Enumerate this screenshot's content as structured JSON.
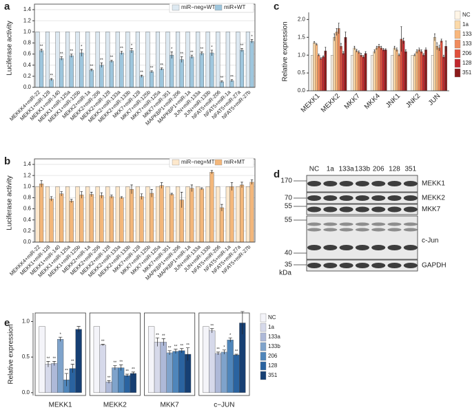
{
  "chart_data": [
    {
      "type": "bar",
      "label": "a",
      "y_label": "Luciferase activity",
      "categories": [
        "MEKKK4+miR-22",
        "MEKK1+miR-128",
        "MEKK1+miR-140",
        "MEKK1+miR-125a",
        "MEKK1+miR-125b",
        "MEKK2+miR-1a",
        "MEKK2+miR-206",
        "MEKK2+miR-128",
        "MEKK2+miR-133a",
        "MEKK2+miR-133b",
        "MKK7+miR-128",
        "MKK7+miR-125b",
        "MKK7+miR-125a",
        "MKK7+miR-351",
        "MAPKBP1+miR-206",
        "MAPKBP1+miR-1a",
        "JUN+miR-133a",
        "JUN+miR-133b",
        "NFAT5+miR-206",
        "NFAT5+miR-1a",
        "NFAT5+miR-27a",
        "NFAT5+miR-27b"
      ],
      "series": [
        {
          "name": "miR−neg+WT",
          "color": "#dde9f2",
          "values": [
            1,
            1,
            1,
            1,
            1,
            1,
            1,
            1,
            1,
            1,
            1,
            1,
            1,
            1,
            1,
            1,
            1,
            1,
            1,
            1,
            1,
            1
          ]
        },
        {
          "name": "miR+WT",
          "color": "#9ec6dd",
          "values": [
            0.66,
            0.14,
            0.52,
            0.57,
            0.62,
            0.31,
            0.4,
            0.47,
            0.62,
            0.66,
            0.2,
            0.28,
            0.33,
            0.58,
            0.5,
            0.55,
            0.61,
            0.62,
            0.1,
            0.12,
            0.67,
            0.83
          ],
          "errors": [
            0.03,
            0.02,
            0.03,
            0.03,
            0.06,
            0.02,
            0.04,
            0.02,
            0.03,
            0.04,
            0.02,
            0.02,
            0.02,
            0.06,
            0.05,
            0.03,
            0.03,
            0.05,
            0.02,
            0.02,
            0.03,
            0.03
          ]
        }
      ],
      "annotations": [
        "**",
        "**",
        "**",
        "**",
        "*",
        "**",
        "**",
        "**",
        "**",
        "*",
        "**",
        "**",
        "**",
        "*",
        "**",
        "**",
        "**",
        "*",
        "**",
        "**",
        "**",
        "*"
      ],
      "ylim": [
        0,
        1.45
      ],
      "yticks": [
        {
          "value": 0,
          "label": "0.0"
        },
        0.2,
        0.4,
        0.6,
        0.8,
        {
          "value": 1,
          "label": "1.0"
        },
        1.2,
        1.4
      ],
      "grid": true,
      "legend": "upper right"
    },
    {
      "type": "bar",
      "label": "b",
      "y_label": "Luciferase activity",
      "categories": [
        "MEKKK4+miR-22",
        "MEKK1+miR-128",
        "MEKK1+miR-140",
        "MEKK1+miR-125a",
        "MEKK1+miR-125b",
        "MEKK2+miR-1a",
        "MEKK2+miR-206",
        "MEKK2+miR-128",
        "MEKK2+miR-133a",
        "MEKK2+miR-133b",
        "MKK7+miR-128",
        "MKK7+miR-125b",
        "MKK7+miR-125a",
        "MKK7+miR-351",
        "MAPKBP1+miR-206",
        "MAPKBP1+miR-1a",
        "JUN+miR-133a",
        "JUN+miR-133b",
        "NFAT5+miR-206",
        "NFAT5+miR-1a",
        "NFAT5+miR-27a",
        "NFAT5+miR-27b"
      ],
      "series": [
        {
          "name": "miR−neg+MT",
          "color": "#fde8cc",
          "values": [
            1,
            1,
            1,
            1,
            1,
            1,
            1,
            1,
            1,
            1,
            1,
            1,
            1,
            1,
            1,
            1,
            1,
            1,
            1,
            1,
            1,
            1
          ]
        },
        {
          "name": "miR+MT",
          "color": "#f3b77b",
          "values": [
            1.05,
            0.78,
            0.87,
            0.74,
            0.85,
            0.86,
            0.84,
            0.82,
            0.8,
            0.95,
            0.82,
            0.88,
            1.02,
            0.86,
            0.76,
            0.97,
            0.96,
            1.26,
            0.62,
            1.0,
            1.03,
            1.08
          ],
          "errors": [
            0.06,
            0.04,
            0.04,
            0.03,
            0.06,
            0.04,
            0.05,
            0.03,
            0.02,
            0.08,
            0.05,
            0.07,
            0.05,
            0.02,
            0.14,
            0.06,
            0.02,
            0.03,
            0.06,
            0.07,
            0.05,
            0.04
          ]
        }
      ],
      "ylim": [
        0,
        1.45
      ],
      "yticks": [
        {
          "value": 0,
          "label": "0.0"
        },
        0.2,
        0.4,
        0.6,
        0.8,
        {
          "value": 1,
          "label": "1.0"
        },
        1.2,
        1.4
      ],
      "grid": true,
      "legend": "upper right"
    },
    {
      "type": "bar",
      "label": "c",
      "y_label": "Relative expression",
      "categories": [
        "MEKK1",
        "MEKK2",
        "MKK7",
        "MKK4",
        "JNK1",
        "JNK2",
        "JUN"
      ],
      "series": [
        {
          "name": "NC",
          "color": "#fff5e6",
          "values": [
            1,
            1,
            1,
            1,
            1,
            1,
            1
          ]
        },
        {
          "name": "1a",
          "color": "#fcd9a8",
          "values": [
            1.35,
            1.5,
            1.2,
            1.1,
            1.2,
            1.0,
            1.5
          ],
          "errors": [
            0.03,
            0.1,
            0.05,
            0.05,
            0.05,
            0.03,
            0.1
          ]
        },
        {
          "name": "133a",
          "color": "#f9b77b",
          "values": [
            1.3,
            1.65,
            1.12,
            1.2,
            1.15,
            1.1,
            1.25
          ],
          "errors": [
            0.03,
            0.1,
            0.04,
            0.05,
            0.05,
            0.05,
            0.1
          ]
        },
        {
          "name": "133b",
          "color": "#f08a5b",
          "values": [
            1.0,
            1.75,
            1.08,
            1.25,
            1.0,
            1.15,
            1.2
          ],
          "errors": [
            0.03,
            0.15,
            0.04,
            0.05,
            0.03,
            0.05,
            0.08
          ]
        },
        {
          "name": "206",
          "color": "#e0503c",
          "values": [
            0.9,
            1.25,
            1.0,
            1.2,
            1.45,
            1.1,
            1.4
          ],
          "errors": [
            0.03,
            0.08,
            0.05,
            0.05,
            0.35,
            0.05,
            0.05
          ]
        },
        {
          "name": "128",
          "color": "#c0272d",
          "values": [
            0.95,
            1.05,
            0.95,
            1.15,
            1.4,
            1.0,
            0.95
          ],
          "errors": [
            0.03,
            0.05,
            0.04,
            0.04,
            0.08,
            0.04,
            0.05
          ]
        },
        {
          "name": "351",
          "color": "#8b1a1a",
          "values": [
            1.12,
            1.5,
            1.05,
            1.15,
            1.1,
            1.15,
            1.25
          ],
          "errors": [
            0.1,
            0.15,
            0.05,
            0.03,
            0.05,
            0.05,
            0.15
          ]
        }
      ],
      "ylim": [
        0,
        2.2
      ],
      "yticks": [
        {
          "value": 0,
          "label": "0.0"
        },
        0.5,
        {
          "value": 1,
          "label": "1.0"
        },
        1.5,
        {
          "value": 2,
          "label": "2.0"
        }
      ],
      "legend": "right"
    },
    {
      "type": "blot",
      "label": "d",
      "lanes": [
        "NC",
        "1a",
        "133a",
        "133b",
        "206",
        "128",
        "351"
      ],
      "bands": [
        "MEKK1",
        "MEKK2",
        "MKK7",
        "c-Jun",
        "GAPDH"
      ],
      "markers": [
        170,
        70,
        55,
        55,
        40,
        35
      ],
      "unit": "kDa"
    },
    {
      "type": "bar",
      "label": "e",
      "y_label": "Relative expression",
      "facets": true,
      "categories": [
        "MEKK1",
        "MEKK2",
        "MKK7",
        "c−JUN"
      ],
      "series": [
        {
          "name": "NC",
          "color": "#f4f4f9",
          "values": [
            0.93,
            0.93,
            0.93,
            0.93
          ]
        },
        {
          "name": "1a",
          "color": "#d6d9ea",
          "values": [
            0.4,
            0.67,
            0.71,
            0.87
          ],
          "errors": [
            0.04,
            0.01,
            0.06,
            0.03
          ],
          "annotations": [
            "**",
            "**",
            "**",
            "**"
          ]
        },
        {
          "name": "133a",
          "color": "#aeb9d8",
          "values": [
            0.41,
            0.15,
            0.71,
            0.55
          ],
          "errors": [
            0.03,
            0.02,
            0.05,
            0.02
          ],
          "annotations": [
            "**",
            "**",
            "**",
            "**"
          ]
        },
        {
          "name": "133b",
          "color": "#7fa3cb",
          "values": [
            0.75,
            0.35,
            0.56,
            0.57
          ],
          "errors": [
            0.03,
            0.03,
            0.03,
            0.03
          ],
          "annotations": [
            "*",
            "**",
            "**",
            "*"
          ]
        },
        {
          "name": "206",
          "color": "#4f86bb",
          "values": [
            0.18,
            0.35,
            0.58,
            0.74
          ],
          "errors": [
            0.09,
            0.04,
            0.03,
            0.03
          ],
          "annotations": [
            "**",
            "**",
            "**",
            "*"
          ]
        },
        {
          "name": "128",
          "color": "#2a63a0",
          "values": [
            0.34,
            0.24,
            0.59,
            0.53
          ],
          "errors": [
            0.06,
            0.02,
            0.03,
            0.01
          ],
          "annotations": [
            "**",
            "**",
            "**",
            "**"
          ]
        },
        {
          "name": "351",
          "color": "#163f73",
          "values": [
            0.89,
            0.27,
            0.54,
            0.98
          ],
          "errors": [
            0.04,
            0.02,
            0.09,
            0.16
          ],
          "annotations": [
            null,
            "**",
            "**",
            null
          ]
        }
      ],
      "ylim": [
        -0.04,
        1.12
      ],
      "yticks": [
        {
          "value": 0,
          "label": "0.0"
        },
        0.5,
        {
          "value": 1,
          "label": "1.0"
        }
      ],
      "legend": "right"
    }
  ]
}
